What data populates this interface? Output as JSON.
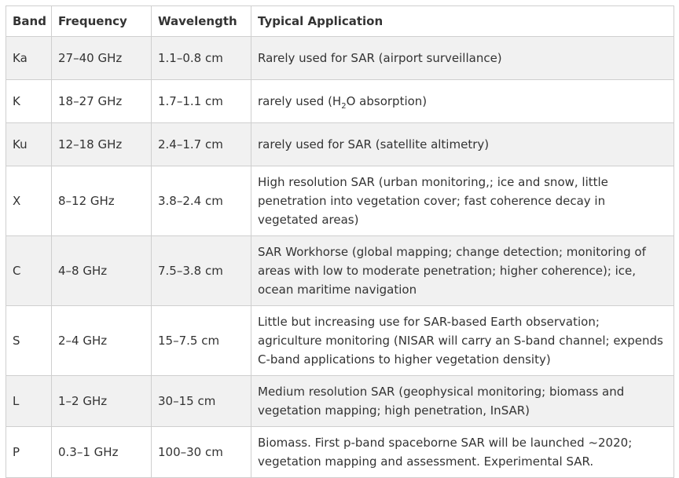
{
  "table": {
    "headers": {
      "band": "Band",
      "frequency": "Frequency",
      "wavelength": "Wavelength",
      "application": "Typical Application"
    },
    "rows": [
      {
        "band": "Ka",
        "frequency": "27–40 GHz",
        "wavelength": "1.1–0.8 cm",
        "application": "Rarely used for SAR (airport surveillance)"
      },
      {
        "band": "K",
        "frequency": "18–27 GHz",
        "wavelength": "1.7–1.1 cm",
        "application_pre": "rarely used (H",
        "application_sub": "2",
        "application_post": "O absorption)"
      },
      {
        "band": "Ku",
        "frequency": "12–18 GHz",
        "wavelength": "2.4–1.7 cm",
        "application": "rarely used for SAR (satellite altimetry)"
      },
      {
        "band": "X",
        "frequency": "8–12 GHz",
        "wavelength": "3.8–2.4 cm",
        "application": "High resolution SAR (urban monitoring,; ice and snow, little penetration into vegetation cover; fast coherence decay in vegetated areas)"
      },
      {
        "band": "C",
        "frequency": "4–8 GHz",
        "wavelength": "7.5–3.8 cm",
        "application": "SAR Workhorse (global mapping; change detection; monitoring of areas with low to moderate penetration; higher coherence); ice, ocean maritime navigation"
      },
      {
        "band": "S",
        "frequency": "2–4 GHz",
        "wavelength": "15–7.5 cm",
        "application": "Little but increasing use for SAR-based Earth observation; agriculture monitoring (NISAR will carry an S-band channel; expends C-band applications to higher vegetation density)"
      },
      {
        "band": "L",
        "frequency": "1–2 GHz",
        "wavelength": "30–15 cm",
        "application": "Medium resolution SAR (geophysical monitoring; biomass and vegetation mapping; high penetration, InSAR)"
      },
      {
        "band": "P",
        "frequency": "0.3–1 GHz",
        "wavelength": "100–30 cm",
        "application": "Biomass. First p-band spaceborne SAR will be launched ~2020; vegetation mapping and assessment. Experimental SAR."
      }
    ]
  }
}
